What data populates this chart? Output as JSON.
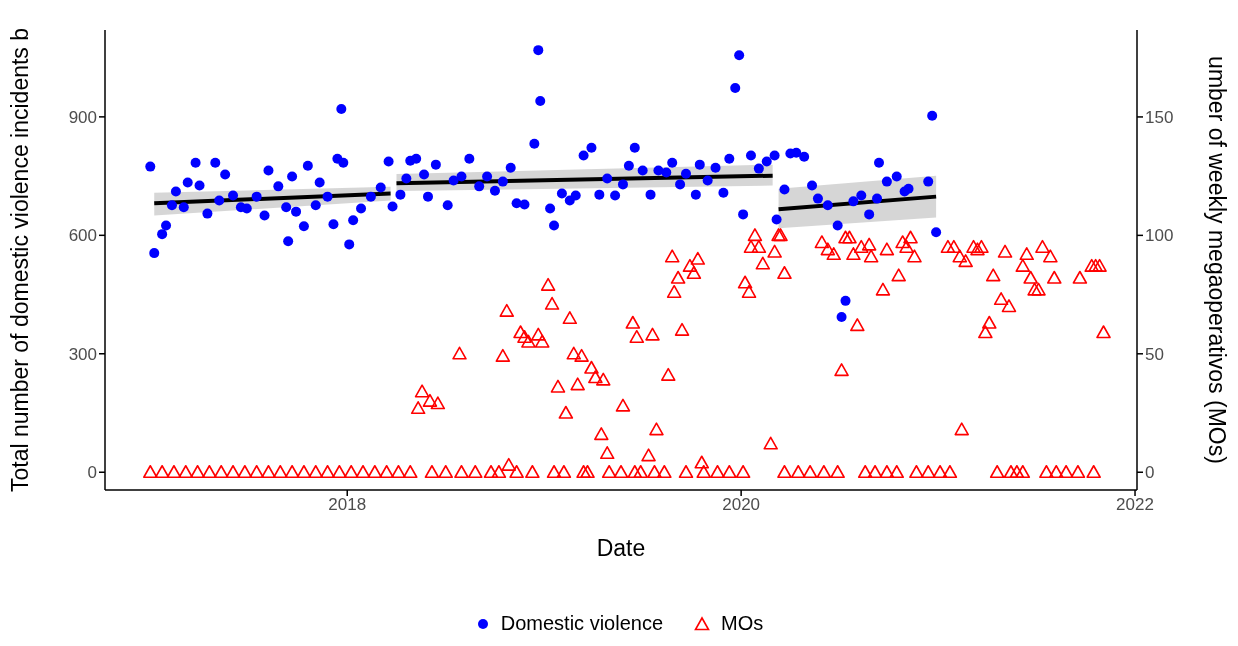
{
  "chart_data": {
    "type": "scatter",
    "xlabel": "Date",
    "ylabel": "Total number of domestic violence incidents b",
    "y2label": "umber of weekly megaoperativos (MOs)",
    "xlim": [
      2016.77,
      2022.01
    ],
    "xticks": [
      2018,
      2020,
      2022
    ],
    "ylim": [
      -45,
      1120
    ],
    "yticks": [
      0,
      300,
      600,
      900
    ],
    "y2lim": [
      -7.5,
      186.7
    ],
    "y2ticks": [
      0,
      50,
      100,
      150
    ],
    "legend": "bottom",
    "series": [
      {
        "name": "Domestic violence",
        "marker": "circle",
        "color": "#0000ff",
        "x": [
          2017.0,
          2017.02,
          2017.06,
          2017.08,
          2017.11,
          2017.13,
          2017.17,
          2017.19,
          2017.23,
          2017.25,
          2017.29,
          2017.33,
          2017.35,
          2017.38,
          2017.42,
          2017.46,
          2017.49,
          2017.54,
          2017.58,
          2017.6,
          2017.65,
          2017.69,
          2017.7,
          2017.72,
          2017.74,
          2017.78,
          2017.8,
          2017.84,
          2017.86,
          2017.9,
          2017.93,
          2017.95,
          2017.97,
          2017.98,
          2018.01,
          2018.03,
          2018.07,
          2018.12,
          2018.17,
          2018.21,
          2018.23,
          2018.27,
          2018.3,
          2018.32,
          2018.35,
          2018.39,
          2018.41,
          2018.45,
          2018.51,
          2018.54,
          2018.58,
          2018.62,
          2018.67,
          2018.71,
          2018.75,
          2018.79,
          2018.83,
          2018.86,
          2018.9,
          2018.95,
          2018.97,
          2018.98,
          2019.03,
          2019.05,
          2019.09,
          2019.13,
          2019.16,
          2019.2,
          2019.24,
          2019.28,
          2019.32,
          2019.36,
          2019.4,
          2019.43,
          2019.46,
          2019.5,
          2019.54,
          2019.58,
          2019.62,
          2019.65,
          2019.69,
          2019.72,
          2019.77,
          2019.79,
          2019.83,
          2019.87,
          2019.91,
          2019.94,
          2019.97,
          2019.99,
          2020.01,
          2020.05,
          2020.09,
          2020.13,
          2020.17,
          2020.18,
          2020.22,
          2020.25,
          2020.28,
          2020.32,
          2020.36,
          2020.39,
          2020.44,
          2020.49,
          2020.51,
          2020.53,
          2020.57,
          2020.61,
          2020.65,
          2020.69,
          2020.7,
          2020.74,
          2020.79,
          2020.83,
          2020.85,
          2020.95,
          2020.97,
          2020.99
        ],
        "values": [
          774,
          555,
          603,
          625,
          676,
          711,
          671,
          734,
          784,
          726,
          655,
          784,
          688,
          754,
          701,
          671,
          668,
          698,
          650,
          764,
          724,
          671,
          585,
          749,
          660,
          623,
          776,
          676,
          734,
          698,
          628,
          794,
          920,
          784,
          577,
          638,
          668,
          698,
          721,
          787,
          673,
          703,
          744,
          789,
          794,
          754,
          698,
          779,
          676,
          739,
          749,
          794,
          724,
          749,
          713,
          736,
          771,
          681,
          678,
          832,
          1069,
          940,
          668,
          625,
          706,
          688,
          701,
          802,
          822,
          703,
          744,
          701,
          729,
          776,
          822,
          764,
          703,
          764,
          759,
          784,
          729,
          756,
          703,
          779,
          739,
          771,
          708,
          794,
          973,
          1056,
          653,
          802,
          769,
          787,
          802,
          640,
          716,
          807,
          809,
          799,
          726,
          693,
          676,
          625,
          393,
          434,
          686,
          701,
          653,
          693,
          784,
          736,
          749,
          711,
          718,
          736,
          903,
          608
        ]
      },
      {
        "name": "MOs",
        "marker": "triangle",
        "color": "#ff0000",
        "axis": "y2",
        "x": [
          2017.0,
          2017.06,
          2017.12,
          2017.18,
          2017.24,
          2017.3,
          2017.36,
          2017.42,
          2017.48,
          2017.54,
          2017.6,
          2017.66,
          2017.72,
          2017.78,
          2017.84,
          2017.9,
          2017.96,
          2018.02,
          2018.08,
          2018.14,
          2018.2,
          2018.26,
          2018.32,
          2018.43,
          2018.5,
          2018.58,
          2018.65,
          2018.73,
          2018.77,
          2018.86,
          2018.94,
          2019.05,
          2019.1,
          2019.2,
          2019.22,
          2019.33,
          2019.39,
          2019.46,
          2019.49,
          2019.56,
          2019.61,
          2019.72,
          2019.81,
          2019.88,
          2019.94,
          2020.01,
          2020.22,
          2020.29,
          2020.35,
          2020.42,
          2020.49,
          2020.63,
          2020.68,
          2020.74,
          2020.79,
          2020.89,
          2020.95,
          2021.01,
          2021.06,
          2021.3,
          2021.37,
          2021.4,
          2021.43,
          2021.55,
          2021.6,
          2021.65,
          2021.71,
          2021.79,
          2018.36,
          2018.38,
          2018.42,
          2018.46,
          2018.57,
          2018.79,
          2018.81,
          2018.82,
          2018.88,
          2018.9,
          2018.92,
          2018.97,
          2018.99,
          2019.02,
          2019.04,
          2019.07,
          2019.11,
          2019.13,
          2019.15,
          2019.17,
          2019.19,
          2019.24,
          2019.26,
          2019.29,
          2019.3,
          2019.32,
          2019.4,
          2019.45,
          2019.47,
          2019.53,
          2019.55,
          2019.57,
          2019.63,
          2019.65,
          2019.66,
          2019.68,
          2019.7,
          2019.74,
          2019.76,
          2019.78,
          2019.8,
          2020.02,
          2020.04,
          2020.05,
          2020.07,
          2020.09,
          2020.11,
          2020.15,
          2020.17,
          2020.19,
          2020.2,
          2020.22,
          2020.41,
          2020.44,
          2020.47,
          2020.51,
          2020.53,
          2020.55,
          2020.57,
          2020.59,
          2020.61,
          2020.65,
          2020.66,
          2020.72,
          2020.74,
          2020.8,
          2020.82,
          2020.84,
          2020.86,
          2020.88,
          2021.05,
          2021.08,
          2021.11,
          2021.12,
          2021.14,
          2021.18,
          2021.2,
          2021.22,
          2021.24,
          2021.26,
          2021.28,
          2021.32,
          2021.34,
          2021.36,
          2021.43,
          2021.45,
          2021.47,
          2021.49,
          2021.51,
          2021.53,
          2021.57,
          2021.59,
          2021.72,
          2021.78,
          2021.8,
          2021.82,
          2021.84
        ],
        "values": [
          0,
          0,
          0,
          0,
          0,
          0,
          0,
          0,
          0,
          0,
          0,
          0,
          0,
          0,
          0,
          0,
          0,
          0,
          0,
          0,
          0,
          0,
          0,
          0,
          0,
          0,
          0,
          0,
          0,
          0,
          0,
          0,
          0,
          0,
          0,
          0,
          0,
          0,
          0,
          0,
          0,
          0,
          0,
          0,
          0,
          0,
          0,
          0,
          0,
          0,
          0,
          0,
          0,
          0,
          0,
          0,
          0,
          0,
          0,
          0,
          0,
          0,
          0,
          0,
          0,
          0,
          0,
          0,
          27,
          34,
          30,
          29,
          50,
          49,
          68,
          3,
          59,
          57,
          55,
          58,
          55,
          79,
          71,
          36,
          25,
          65,
          50,
          37,
          49,
          44,
          40,
          16,
          39,
          8,
          28,
          63,
          57,
          7,
          58,
          18,
          41,
          91,
          76,
          82,
          60,
          87,
          84,
          90,
          4,
          80,
          76,
          95,
          100,
          95,
          88,
          12,
          93,
          100,
          100,
          84,
          97,
          94,
          92,
          43,
          99,
          99,
          92,
          62,
          95,
          96,
          91,
          77,
          94,
          83,
          97,
          95,
          99,
          91,
          95,
          95,
          91,
          18,
          89,
          95,
          94,
          95,
          59,
          63,
          83,
          73,
          93,
          70,
          87,
          92,
          82,
          77,
          77,
          95,
          91,
          82,
          82,
          87,
          87,
          87,
          59
        ]
      },
      {
        "type": "line",
        "color": "#000000",
        "x": [
          2017.02,
          2018.22
        ],
        "values": [
          681,
          706
        ],
        "lower": [
          650,
          688
        ],
        "upper": [
          708,
          723
        ]
      },
      {
        "type": "line",
        "color": "#000000",
        "x": [
          2018.25,
          2020.16
        ],
        "values": [
          732,
          751
        ],
        "lower": [
          712,
          726
        ],
        "upper": [
          755,
          779
        ]
      },
      {
        "type": "line",
        "color": "#000000",
        "x": [
          2020.19,
          2020.99
        ],
        "values": [
          666,
          698
        ],
        "lower": [
          618,
          645
        ],
        "upper": [
          718,
          751
        ]
      }
    ]
  }
}
